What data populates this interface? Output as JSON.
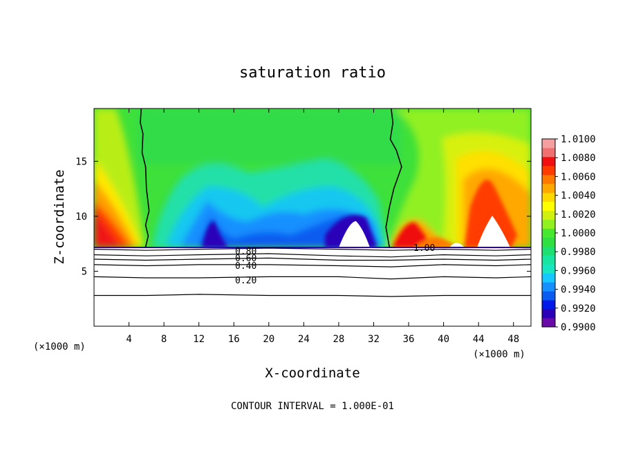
{
  "chart_data": {
    "type": "heatmap",
    "title": "saturation ratio",
    "xlabel": "X-coordinate",
    "ylabel": "Z-coordinate",
    "x_unit": "(×1000 m)",
    "x_unit_right": "(×1000 m)",
    "xlim": [
      0,
      50
    ],
    "ylim": [
      0,
      19.8
    ],
    "x_ticks": [
      4,
      8,
      12,
      16,
      20,
      24,
      28,
      32,
      36,
      40,
      44,
      48
    ],
    "y_ticks": [
      5,
      10,
      15
    ],
    "footer": "CONTOUR INTERVAL = 1.000E-01",
    "colorbar": {
      "labels": [
        "1.0100",
        "1.0080",
        "1.0060",
        "1.0040",
        "1.0020",
        "1.0000",
        "0.9980",
        "0.9960",
        "0.9940",
        "0.9920",
        "0.9900"
      ],
      "levels": [
        0.99,
        0.991,
        0.992,
        0.993,
        0.994,
        0.995,
        0.996,
        0.997,
        0.998,
        0.999,
        1.0,
        1.001,
        1.002,
        1.003,
        1.004,
        1.005,
        1.006,
        1.007,
        1.008,
        1.009,
        1.01
      ],
      "colors": [
        "#6a0aa8",
        "#2a00b8",
        "#0018e8",
        "#0a5cf0",
        "#1690ff",
        "#16c8ff",
        "#18e6c0",
        "#18e6a0",
        "#1ee070",
        "#30e040",
        "#48e830",
        "#90f020",
        "#d0f010",
        "#ffff00",
        "#ffd800",
        "#ffa800",
        "#ff7800",
        "#ff3c00",
        "#f01010",
        "#f07070",
        "#f4a0a0"
      ]
    },
    "contour_labels": [
      "0.80",
      "0.60",
      "0.40",
      "0.20",
      "1.00"
    ],
    "contours": [
      {
        "label": "0.20",
        "x": [
          0,
          6,
          12,
          20,
          28,
          34,
          40,
          46,
          50
        ],
        "z": [
          4.5,
          4.4,
          4.4,
          4.5,
          4.5,
          4.3,
          4.5,
          4.4,
          4.5
        ]
      },
      {
        "label": "0.40",
        "x": [
          0,
          6,
          12,
          20,
          28,
          34,
          40,
          46,
          50
        ],
        "z": [
          5.6,
          5.5,
          5.6,
          5.6,
          5.5,
          5.4,
          5.6,
          5.5,
          5.6
        ]
      },
      {
        "label": "0.60",
        "x": [
          0,
          6,
          12,
          20,
          28,
          34,
          40,
          46,
          50
        ],
        "z": [
          6.1,
          6.0,
          6.1,
          6.2,
          6.0,
          6.0,
          6.1,
          6.0,
          6.1
        ]
      },
      {
        "label": "0.80",
        "x": [
          0,
          6,
          12,
          20,
          28,
          34,
          40,
          46,
          50
        ],
        "z": [
          6.5,
          6.4,
          6.5,
          6.6,
          6.4,
          6.3,
          6.5,
          6.4,
          6.5
        ]
      },
      {
        "label": "1.00",
        "x": [
          0,
          6,
          12,
          20,
          28,
          34,
          40,
          46,
          50
        ],
        "z": [
          7.0,
          6.9,
          7.0,
          7.1,
          7.0,
          6.9,
          7.0,
          6.9,
          7.0
        ]
      },
      {
        "label": "",
        "x": [
          0,
          6,
          12,
          20,
          28,
          34,
          40,
          46,
          50
        ],
        "z": [
          2.8,
          2.8,
          2.9,
          2.8,
          2.8,
          2.7,
          2.8,
          2.8,
          2.8
        ]
      }
    ],
    "saturation_boundaries": [
      {
        "x": [
          5.4,
          5.3,
          5.6,
          5.5,
          5.9,
          6.0,
          6.3,
          5.9,
          6.2,
          5.9
        ],
        "z": [
          19.8,
          18.5,
          17.5,
          15.8,
          14.5,
          12.5,
          10.5,
          9.2,
          8.2,
          7.2
        ]
      },
      {
        "x": [
          34.0,
          34.2,
          33.9,
          34.6,
          35.2,
          34.3,
          33.8,
          33.4,
          33.8
        ],
        "z": [
          19.8,
          18.5,
          17.0,
          16.0,
          14.5,
          12.5,
          10.8,
          9.0,
          7.2
        ]
      }
    ]
  }
}
